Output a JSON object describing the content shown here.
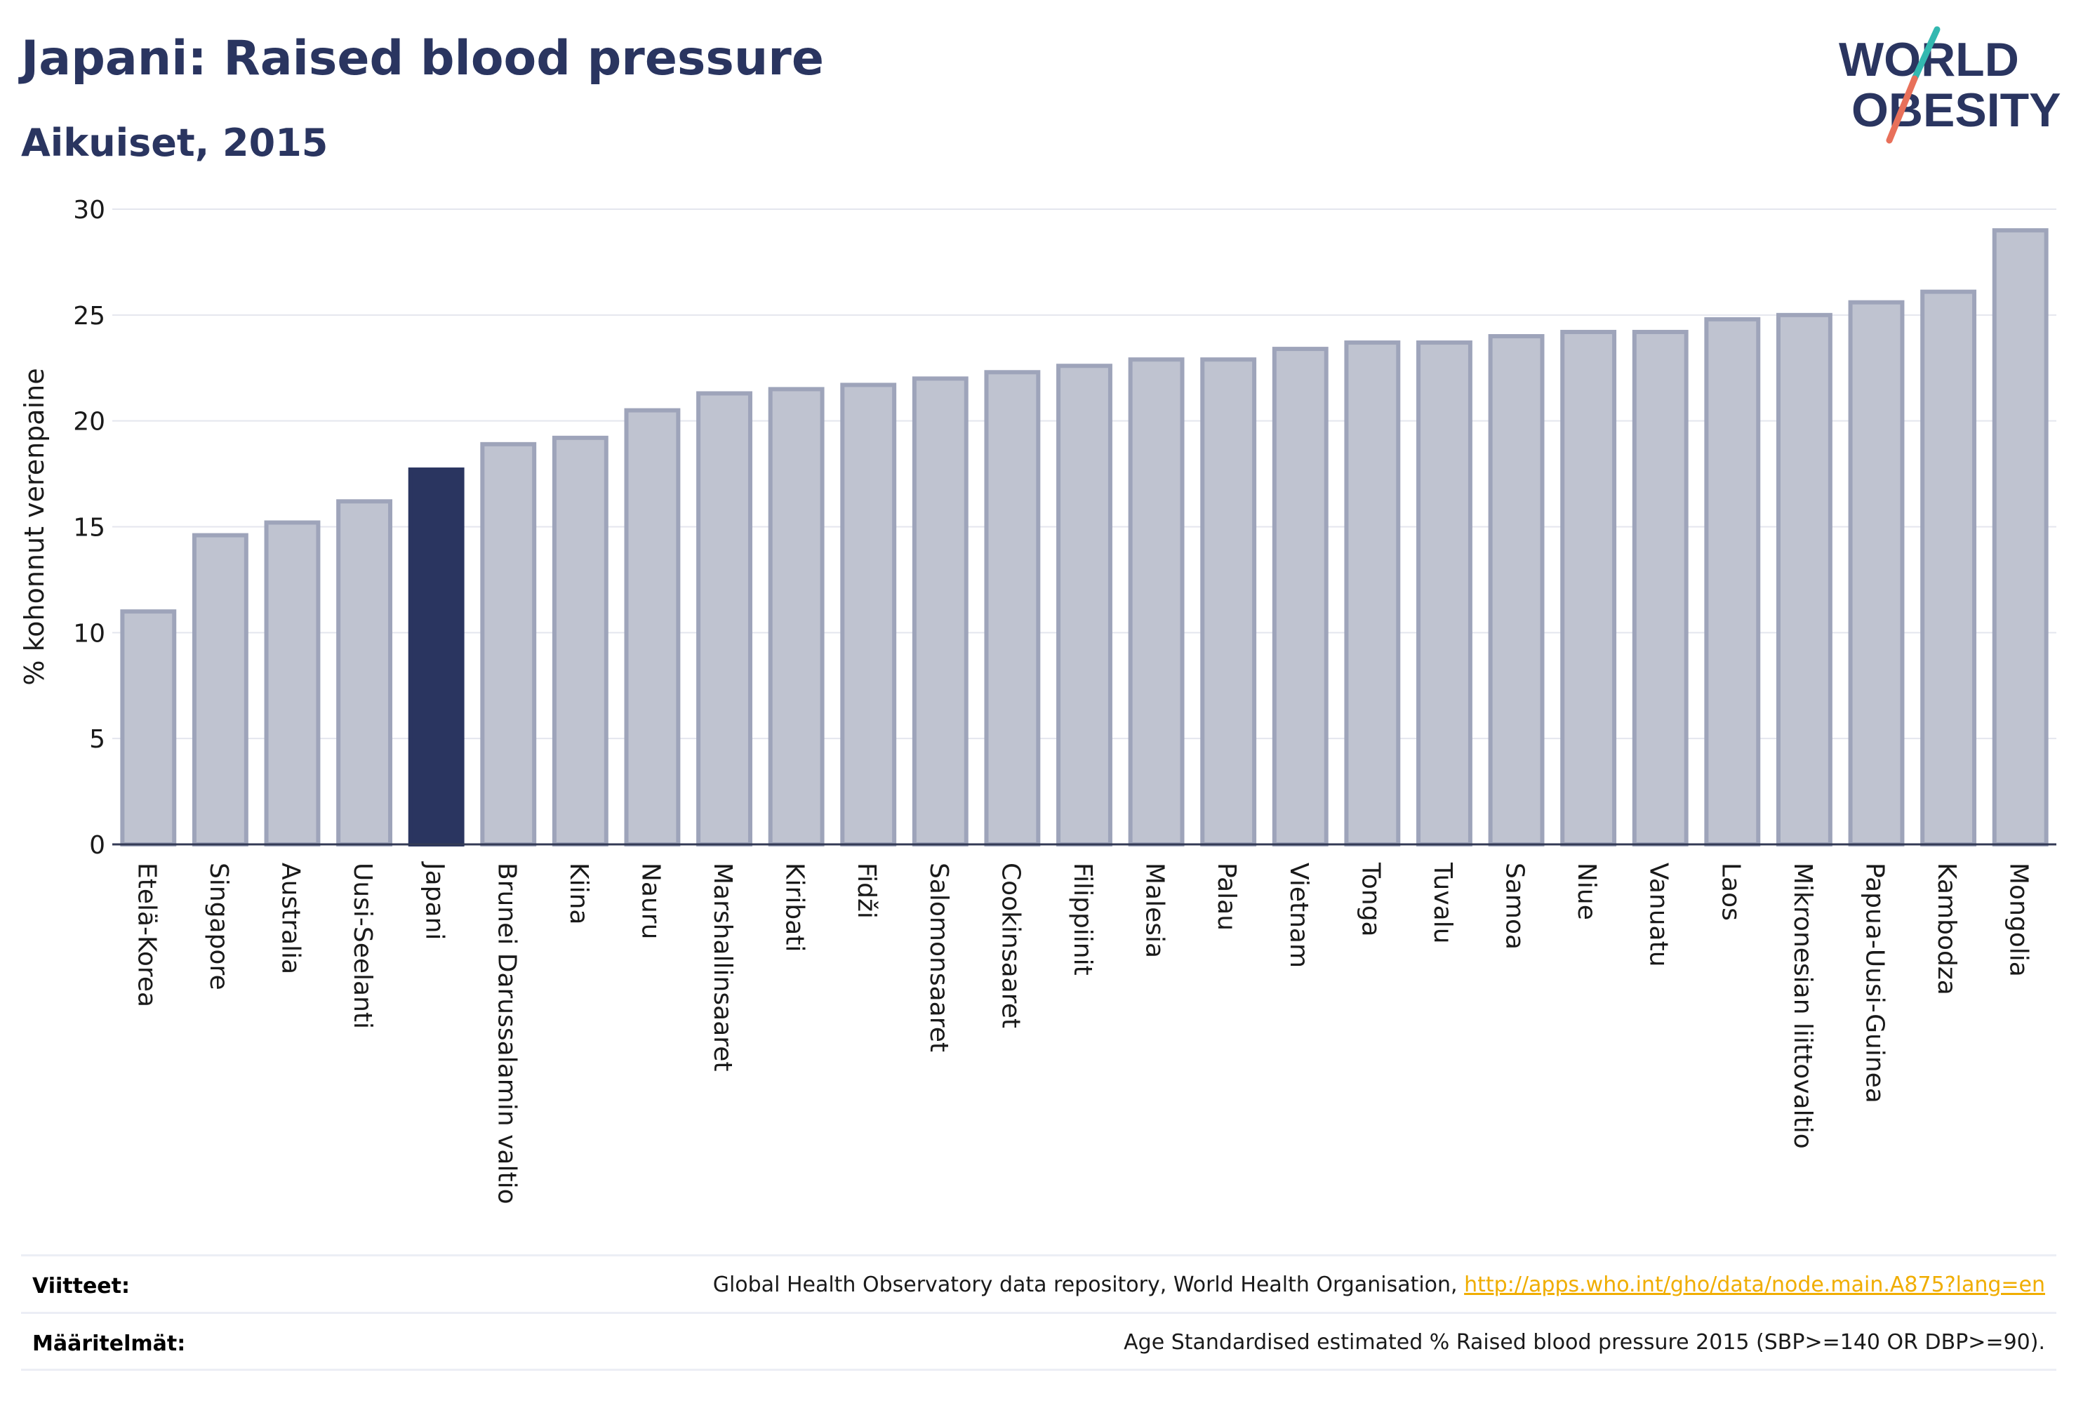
{
  "header": {
    "title": "Japani: Raised blood pressure",
    "subtitle": "Aikuiset, 2015"
  },
  "logo": {
    "line1": "WORLD",
    "line2": "OBESITY"
  },
  "colors": {
    "highlight": "#2a3560",
    "bar_fill": "#bfc3d0",
    "bar_stroke": "#9ea4ba",
    "logo_teal": "#33b8b0",
    "logo_coral": "#e8705a",
    "link": "#f0ad00"
  },
  "chart_data": {
    "type": "bar",
    "title": "Japani: Raised blood pressure",
    "subtitle": "Aikuiset, 2015",
    "xlabel": "",
    "ylabel": "% kohonnut verenpaine",
    "ylim": [
      0,
      30
    ],
    "yticks": [
      0,
      5,
      10,
      15,
      20,
      25,
      30
    ],
    "grid": true,
    "highlight": "Japani",
    "categories": [
      "Etelä-Korea",
      "Singapore",
      "Australia",
      "Uusi-Seelanti",
      "Japani",
      "Brunei Darussalamin valtio",
      "Kiina",
      "Nauru",
      "Marshallinsaaret",
      "Kiribati",
      "Fidži",
      "Salomonsaaret",
      "Cookinsaaret",
      "Filippiinit",
      "Malesia",
      "Palau",
      "Vietnam",
      "Tonga",
      "Tuvalu",
      "Samoa",
      "Niue",
      "Vanuatu",
      "Laos",
      "Mikronesian liittovaltio",
      "Papua-Uusi-Guinea",
      "Kambodza",
      "Mongolia"
    ],
    "values": [
      11.0,
      14.6,
      15.2,
      16.2,
      17.7,
      18.9,
      19.2,
      20.5,
      21.3,
      21.5,
      21.7,
      22.0,
      22.3,
      22.6,
      22.9,
      22.9,
      23.4,
      23.7,
      23.7,
      24.0,
      24.2,
      24.2,
      24.8,
      25.0,
      25.6,
      26.1,
      29.0
    ]
  },
  "footer": {
    "references_label": "Viitteet:",
    "references_text": "Global Health Observatory data repository, World Health Organisation,",
    "references_link": "http://apps.who.int/gho/data/node.main.A875?lang=en",
    "definitions_label": "Määritelmät:",
    "definitions_text": "Age Standardised estimated % Raised blood pressure 2015 (SBP>=140 OR DBP>=90)."
  }
}
